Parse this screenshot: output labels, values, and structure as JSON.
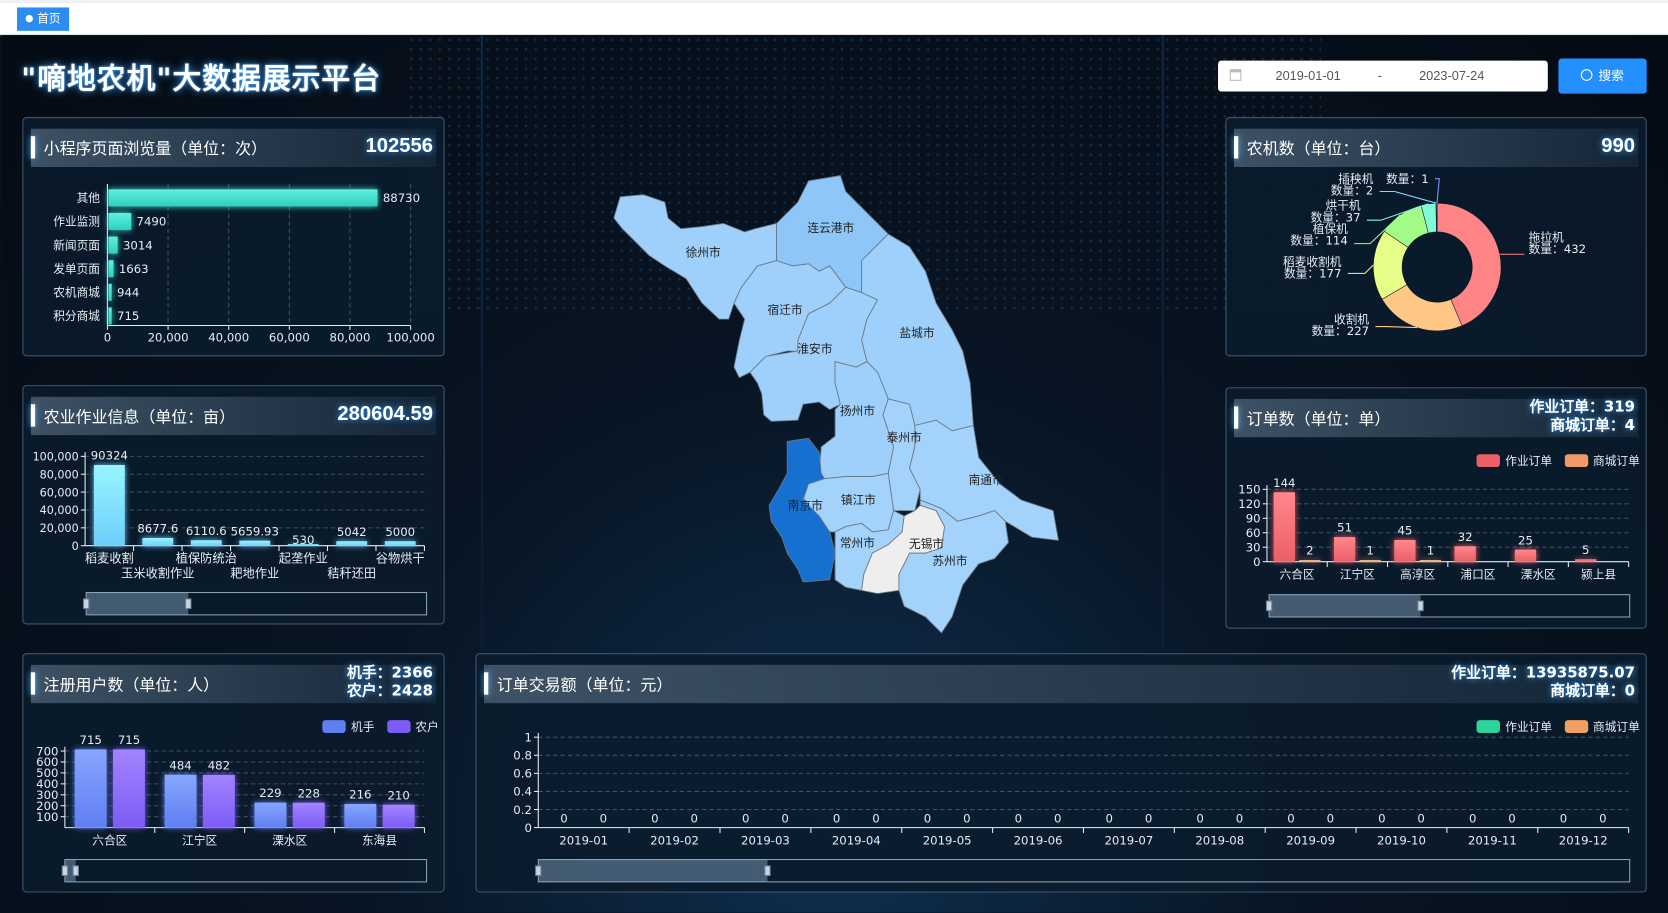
{
  "tabs": [
    {
      "label": "首页",
      "active": true
    }
  ],
  "title": "\"嘀地农机\"大数据展示平台",
  "date_range": {
    "start": "2019-01-01",
    "separator": "-",
    "end": "2023-07-24"
  },
  "search_label": "搜索",
  "panels": {
    "pageviews": {
      "title": "小程序页面浏览量（单位：次）",
      "value": "102556"
    },
    "farmwork": {
      "title": "农业作业信息（单位：亩）",
      "value": "280604.59"
    },
    "users": {
      "title": "注册用户数（单位：人）",
      "line1": "机手：2366",
      "line2": "农户：2428"
    },
    "machines": {
      "title": "农机数（单位：台）",
      "value": "990"
    },
    "orders": {
      "title": "订单数（单位：单）",
      "line1": "作业订单：319",
      "line2": "商城订单：4"
    },
    "transactions": {
      "title": "订单交易额（单位：元）",
      "line1": "作业订单：13935875.07",
      "line2": "商城订单：0"
    }
  },
  "map": {
    "regions": [
      {
        "name": "徐州市",
        "color": "#9fd0fb"
      },
      {
        "name": "连云港市",
        "color": "#8ec6f7"
      },
      {
        "name": "宿迁市",
        "color": "#9fd0fb"
      },
      {
        "name": "淮安市",
        "color": "#9fd0fb"
      },
      {
        "name": "盐城市",
        "color": "#9fd0fb"
      },
      {
        "name": "扬州市",
        "color": "#9fd0fb"
      },
      {
        "name": "泰州市",
        "color": "#a3d2fb"
      },
      {
        "name": "南通市",
        "color": "#a3d2fb"
      },
      {
        "name": "南京市",
        "color": "#1670d0"
      },
      {
        "name": "镇江市",
        "color": "#a3d2fb"
      },
      {
        "name": "常州市",
        "color": "#a3d2fb"
      },
      {
        "name": "无锡市",
        "color": "#eeeeee"
      },
      {
        "name": "苏州市",
        "color": "#a3d2fb"
      }
    ]
  },
  "chart_data": [
    {
      "id": "pageviews",
      "type": "bar",
      "orientation": "horizontal",
      "categories": [
        "其他",
        "作业监测",
        "新闻页面",
        "发单页面",
        "农机商城",
        "积分商城"
      ],
      "values": [
        88730,
        7490,
        3014,
        1663,
        944,
        715
      ],
      "xlim": [
        0,
        100000
      ],
      "xticks": [
        "0",
        "20,000",
        "40,000",
        "60,000",
        "80,000",
        "100,000"
      ],
      "color": "#3ee0cf",
      "grid": true
    },
    {
      "id": "farmwork",
      "type": "bar",
      "categories": [
        "稻麦收割",
        "玉米收割作业",
        "植保防统治",
        "耙地作业",
        "起垄作业",
        "秸秆还田",
        "谷物烘干"
      ],
      "values": [
        90324,
        8677.6,
        6110.6,
        5659.93,
        530,
        5042,
        5000
      ],
      "labels": [
        "90324",
        "8677.6",
        "6110.6",
        "5659.93",
        "530",
        "5042",
        "5000"
      ],
      "ylim": [
        0,
        100000
      ],
      "yticks": [
        "0",
        "20,000",
        "40,000",
        "60,000",
        "80,000",
        "100,000"
      ],
      "color": "#6fcdfc",
      "grid": true,
      "zoom_range": [
        0,
        30
      ]
    },
    {
      "id": "machines",
      "type": "pie",
      "donut": true,
      "label_prefix": "数量：",
      "items": [
        {
          "name": "拖拉机",
          "value": 432,
          "color": "#ff8486"
        },
        {
          "name": "收割机",
          "value": 227,
          "color": "#ffc784"
        },
        {
          "name": "稻麦收割机",
          "value": 177,
          "color": "#e6fd88"
        },
        {
          "name": "植保机",
          "value": 114,
          "color": "#a2fb86"
        },
        {
          "name": "烘干机",
          "value": 37,
          "color": "#80fbd6"
        },
        {
          "name": "插秧机",
          "value": 2,
          "color": "#7fd9ff"
        },
        {
          "name": "",
          "value": 1,
          "color": "#7f9bff"
        }
      ]
    },
    {
      "id": "orders",
      "type": "bar",
      "categories": [
        "六合区",
        "江宁区",
        "高淳区",
        "浦口区",
        "溧水区",
        "颍上县"
      ],
      "series": [
        {
          "name": "作业订单",
          "values": [
            144,
            51,
            45,
            32,
            25,
            5
          ],
          "color": "#ec5f66"
        },
        {
          "name": "商城订单",
          "values": [
            2,
            1,
            1,
            null,
            null,
            null
          ],
          "color": "#f0996a"
        }
      ],
      "ylim": [
        0,
        150
      ],
      "yticks": [
        "0",
        "30",
        "60",
        "90",
        "120",
        "150"
      ],
      "legend": "top-right",
      "grid": true,
      "zoom_range": [
        0,
        42
      ]
    },
    {
      "id": "users",
      "type": "bar",
      "categories": [
        "六合区",
        "江宁区",
        "溧水区",
        "东海县"
      ],
      "series": [
        {
          "name": "机手",
          "values": [
            715,
            484,
            229,
            216
          ],
          "color": "#5f7ef2"
        },
        {
          "name": "农户",
          "values": [
            715,
            482,
            228,
            210
          ],
          "color": "#7b5cf5"
        }
      ],
      "ylim": [
        0,
        700
      ],
      "yticks": [
        "100",
        "200",
        "300",
        "400",
        "500",
        "600",
        "700"
      ],
      "legend": "top-right",
      "grid": true,
      "zoom_range": [
        0,
        3
      ]
    },
    {
      "id": "transactions",
      "type": "bar",
      "categories": [
        "2019-01",
        "2019-02",
        "2019-03",
        "2019-04",
        "2019-05",
        "2019-06",
        "2019-07",
        "2019-08",
        "2019-09",
        "2019-10",
        "2019-11",
        "2019-12"
      ],
      "series": [
        {
          "name": "作业订单",
          "values": [
            0,
            0,
            0,
            0,
            0,
            0,
            0,
            0,
            0,
            0,
            0,
            0
          ],
          "color": "#2fd39c"
        },
        {
          "name": "商城订单",
          "values": [
            0,
            0,
            0,
            0,
            0,
            0,
            0,
            0,
            0,
            0,
            0,
            0
          ],
          "color": "#f0a060"
        }
      ],
      "ylim": [
        0,
        1
      ],
      "yticks": [
        "0",
        "0.2",
        "0.4",
        "0.6",
        "0.8",
        "1"
      ],
      "legend": "top-right",
      "grid": true,
      "zoom_range": [
        0,
        21
      ]
    }
  ]
}
